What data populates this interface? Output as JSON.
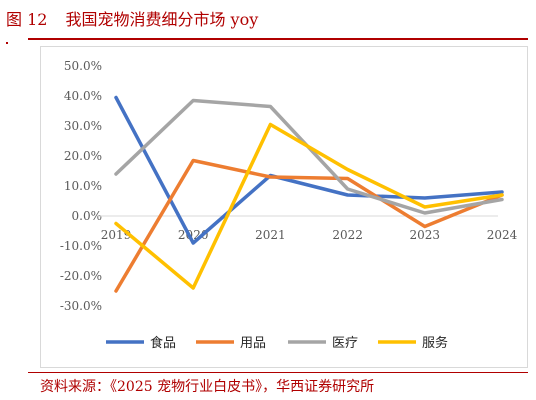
{
  "figure": {
    "number": "图 12",
    "title": "我国宠物消费细分市场 yoy",
    "source": "资料来源：《2025 宠物行业白皮书》，华西证券研究所"
  },
  "chart_data": {
    "type": "line",
    "categories": [
      "2019",
      "2020",
      "2021",
      "2022",
      "2023",
      "2024"
    ],
    "ylim": [
      -30,
      50
    ],
    "yticks": [
      50,
      40,
      30,
      20,
      10,
      0,
      -10,
      -20,
      -30
    ],
    "ytick_labels": [
      "50.0%",
      "40.0%",
      "30.0%",
      "20.0%",
      "10.0%",
      "0.0%",
      "-10.0%",
      "-20.0%",
      "-30.0%"
    ],
    "grid": false,
    "legend_position": "bottom",
    "series": [
      {
        "name": "食品",
        "color": "#4472c4",
        "values": [
          39.5,
          -9.0,
          13.5,
          7.0,
          6.0,
          8.0
        ]
      },
      {
        "name": "用品",
        "color": "#ed7d31",
        "values": [
          -25.0,
          18.5,
          13.0,
          12.5,
          -3.5,
          7.0
        ]
      },
      {
        "name": "医疗",
        "color": "#a5a5a5",
        "values": [
          14.0,
          38.5,
          36.5,
          9.0,
          1.0,
          5.5
        ]
      },
      {
        "name": "服务",
        "color": "#ffc000",
        "values": [
          -2.5,
          -24.0,
          30.5,
          15.5,
          3.0,
          7.0
        ]
      }
    ]
  }
}
